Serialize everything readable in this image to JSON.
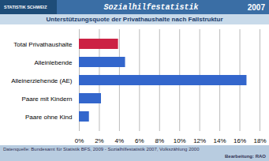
{
  "chart_data": {
    "type": "bar",
    "orientation": "horizontal",
    "title": "Sozialhilfestatistik",
    "subtitle": "Unterstützungsquote der Privathaushalte nach Fallstruktur",
    "annotations": [
      "2007",
      "STATISTIK SCHWEIZ",
      "Datenquelle: Bundesamt für Statistik BFS, 2009 - Sozialhilfestatistik 2007, Volkszählung 2000",
      "Bearbeitung: RAO"
    ],
    "categories": [
      "Total Privathaushalte",
      "Alleinlebende",
      "Alleinerziehende (AE)",
      "Paare mit Kindern",
      "Paare ohne Kind"
    ],
    "values": [
      3.9,
      4.6,
      16.7,
      2.2,
      1.0
    ],
    "colors": [
      "#cc2244",
      "#3366cc",
      "#3366cc",
      "#3366cc",
      "#3366cc"
    ],
    "xlim": [
      0,
      18
    ],
    "xticks": [
      {
        "value": 0,
        "label": "0%"
      },
      {
        "value": 2,
        "label": "2%"
      },
      {
        "value": 4,
        "label": "4%"
      },
      {
        "value": 6,
        "label": "6%"
      },
      {
        "value": 8,
        "label": "8%"
      },
      {
        "value": 10,
        "label": "10%"
      },
      {
        "value": 12,
        "label": "12%"
      },
      {
        "value": 14,
        "label": "14%"
      },
      {
        "value": 16,
        "label": "16%"
      },
      {
        "value": 18,
        "label": "18%"
      }
    ],
    "grid": true
  }
}
